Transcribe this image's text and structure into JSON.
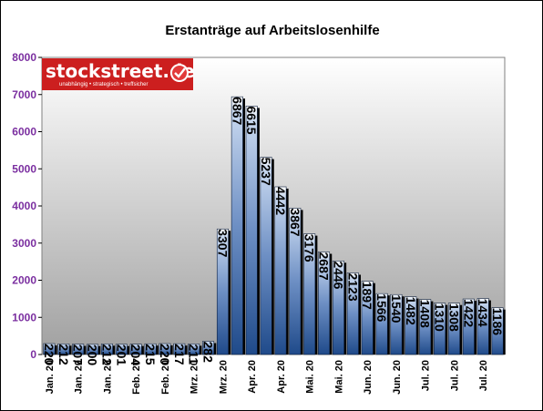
{
  "logo": {
    "name": "stockstreet.de",
    "tagline": "unabhängig • strategisch • treffsicher",
    "bg_color": "#cc1f1f",
    "icon": "checkmark-badge-icon"
  },
  "chart_data": {
    "type": "bar",
    "title": "Erstanträge auf Arbeitslosenhilfe",
    "xlabel": "",
    "ylabel": "",
    "ylim": [
      0,
      8000
    ],
    "yticks": [
      0,
      1000,
      2000,
      3000,
      4000,
      5000,
      6000,
      7000,
      8000
    ],
    "grid": false,
    "legend": "none",
    "colors": {
      "bar_top": "#ffffff",
      "bar_bottom": "#1f4a8a",
      "shadow": "#000000",
      "plot_bg_top": "#ffffff",
      "plot_bg_bottom": "#9a9a9a",
      "ytick_color": "#7b2fa0"
    },
    "categories": [
      "Jan. 20",
      "",
      "Jan. 20",
      "",
      "Jan. 20",
      "",
      "Feb. 20",
      "",
      "Feb. 20",
      "",
      "Mrz. 20",
      "",
      "Mrz. 20",
      "",
      "Apr. 20",
      "",
      "Apr. 20",
      "",
      "Mai. 20",
      "",
      "Mai. 20",
      "",
      "Jun. 20",
      "",
      "Jun. 20",
      "",
      "Jul. 20",
      "",
      "Jul. 20",
      "",
      "Jul. 20",
      ""
    ],
    "values": [
      220,
      212,
      207,
      200,
      212,
      201,
      204,
      215,
      220,
      217,
      211,
      282,
      3307,
      6867,
      6615,
      5237,
      4442,
      3867,
      3176,
      2687,
      2446,
      2123,
      1897,
      1566,
      1540,
      1482,
      1408,
      1310,
      1308,
      1422,
      1434,
      1186
    ]
  }
}
